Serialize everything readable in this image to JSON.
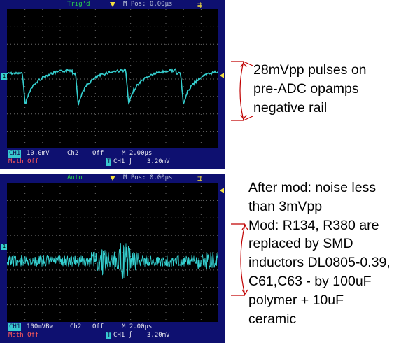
{
  "scope_top": {
    "trigger_status": "Trig'd",
    "horizontal_position": "M Pos: 0.00µs",
    "usb_icon": "usb-icon",
    "channel_marker": "1",
    "ch1_label": "CH1",
    "ch1_scale": "10.0mV",
    "ch2_label": "Ch2",
    "ch2_state": "Off",
    "timebase": "M 2.00µs",
    "math_label": "Math",
    "math_state": "Off",
    "trigger_badge": "T",
    "trigger_source": "CH1",
    "trigger_level": "3.20mV",
    "colors": {
      "background": "#0e1070",
      "trace": "#35d0d0",
      "grid": "#6a6a6a"
    }
  },
  "scope_bottom": {
    "trigger_status": "Auto",
    "horizontal_position": "M Pos: 0.00µs",
    "usb_icon": "usb-icon",
    "channel_marker": "1",
    "ch1_label": "CH1",
    "ch1_scale": "100mVBw",
    "ch2_label": "Ch2",
    "ch2_state": "Off",
    "timebase": "M 2.00µs",
    "math_label": "Math",
    "math_state": "Off",
    "trigger_badge": "T",
    "trigger_source": "CH1",
    "trigger_level": "3.20mV",
    "colors": {
      "background": "#0e1070",
      "trace": "#35d0d0",
      "grid": "#6a6a6a"
    }
  },
  "annotation_top": {
    "lines": [
      "28mVpp pulses on",
      "pre-ADC opamps",
      "negative rail"
    ],
    "color": "#c00000"
  },
  "annotation_bottom": {
    "lines": [
      "After mod: noise less",
      "than 3mVpp",
      "Mod: R134, R380 are",
      "replaced by SMD",
      "inductors DL0805-0.39,",
      "C61,C63 - by 100uF",
      "polymer + 10uF",
      "ceramic"
    ],
    "color": "#c00000"
  }
}
